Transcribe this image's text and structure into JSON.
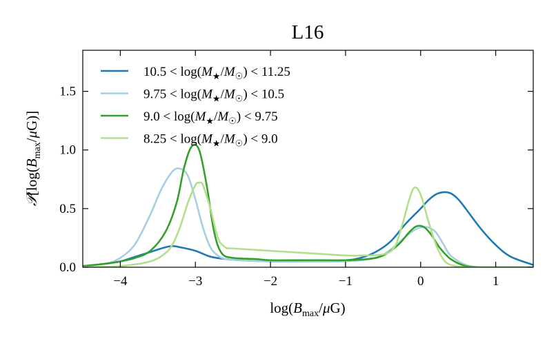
{
  "chart_data": {
    "type": "line",
    "title": "L16",
    "xlabel": "log(B_max/μG)",
    "ylabel": "𝒫[log(B_max/μG)]",
    "xlim": [
      -4.5,
      1.5
    ],
    "ylim": [
      0,
      1.85
    ],
    "xticks": [
      -4,
      -3,
      -2,
      -1,
      0,
      1
    ],
    "xtick_labels": [
      "−4",
      "−3",
      "−2",
      "−1",
      "0",
      "1"
    ],
    "yticks": [
      0.0,
      0.5,
      1.0,
      1.5
    ],
    "ytick_labels": [
      "0.0",
      "0.5",
      "1.0",
      "1.5"
    ],
    "legend_position": "upper-left",
    "series": [
      {
        "name": "10.5 < log(M★/M☉) < 11.25",
        "legend_prefix": "10.5 < log(",
        "legend_suffix": ") < 11.25",
        "color": "#1f78b4",
        "x": [
          -4.5,
          -4.2,
          -4.0,
          -3.8,
          -3.6,
          -3.4,
          -3.3,
          -3.2,
          -3.0,
          -2.8,
          -2.6,
          -2.4,
          -2.0,
          -1.5,
          -1.0,
          -0.8,
          -0.6,
          -0.4,
          -0.2,
          0.0,
          0.1,
          0.2,
          0.3,
          0.4,
          0.5,
          0.6,
          0.8,
          1.0,
          1.2,
          1.5
        ],
        "y": [
          0.01,
          0.03,
          0.05,
          0.09,
          0.13,
          0.17,
          0.18,
          0.17,
          0.14,
          0.09,
          0.07,
          0.06,
          0.05,
          0.05,
          0.06,
          0.08,
          0.13,
          0.22,
          0.37,
          0.5,
          0.57,
          0.62,
          0.64,
          0.63,
          0.58,
          0.5,
          0.33,
          0.19,
          0.09,
          0.02
        ]
      },
      {
        "name": "9.75 < log(M★/M☉) < 10.5",
        "legend_prefix": "9.75 < log(",
        "legend_suffix": ") < 10.5",
        "color": "#a6cee3",
        "x": [
          -4.5,
          -4.2,
          -4.0,
          -3.8,
          -3.6,
          -3.45,
          -3.3,
          -3.2,
          -3.1,
          -3.0,
          -2.9,
          -2.8,
          -2.7,
          -2.6,
          -2.4,
          -2.0,
          -1.5,
          -1.0,
          -0.6,
          -0.4,
          -0.2,
          -0.1,
          0.0,
          0.1,
          0.2,
          0.3,
          0.4,
          0.6,
          0.8,
          1.0,
          1.5
        ],
        "y": [
          0.01,
          0.03,
          0.08,
          0.2,
          0.45,
          0.67,
          0.82,
          0.84,
          0.78,
          0.58,
          0.34,
          0.17,
          0.1,
          0.07,
          0.06,
          0.05,
          0.05,
          0.05,
          0.08,
          0.15,
          0.26,
          0.31,
          0.34,
          0.34,
          0.3,
          0.2,
          0.1,
          0.02,
          0.0,
          0.0,
          0.0
        ]
      },
      {
        "name": "9.0 < log(M★/M☉) < 9.75",
        "legend_prefix": "9.0 < log(",
        "legend_suffix": ") < 9.75",
        "color": "#33a02c",
        "x": [
          -4.5,
          -4.2,
          -4.0,
          -3.8,
          -3.6,
          -3.4,
          -3.25,
          -3.15,
          -3.05,
          -2.95,
          -2.85,
          -2.75,
          -2.65,
          -2.5,
          -2.2,
          -2.0,
          -1.5,
          -1.0,
          -0.7,
          -0.5,
          -0.3,
          -0.15,
          -0.05,
          0.05,
          0.15,
          0.25,
          0.4,
          0.6,
          0.8,
          1.0,
          1.5
        ],
        "y": [
          0.01,
          0.03,
          0.05,
          0.08,
          0.14,
          0.3,
          0.55,
          0.85,
          1.03,
          1.0,
          0.7,
          0.3,
          0.12,
          0.08,
          0.07,
          0.06,
          0.06,
          0.06,
          0.07,
          0.1,
          0.19,
          0.3,
          0.35,
          0.34,
          0.27,
          0.17,
          0.07,
          0.01,
          0.0,
          0.0,
          0.0
        ]
      },
      {
        "name": "8.25 < log(M★/M☉) < 9.0",
        "legend_prefix": "8.25 < log(",
        "legend_suffix": ") < 9.0",
        "color": "#b2df8a",
        "x": [
          -4.5,
          -4.0,
          -3.6,
          -3.4,
          -3.3,
          -3.2,
          -3.1,
          -3.0,
          -2.95,
          -2.9,
          -2.8,
          -2.7,
          -2.6,
          -2.5,
          -2.0,
          -1.5,
          -1.0,
          -0.8,
          -0.5,
          -0.35,
          -0.25,
          -0.15,
          -0.08,
          0.0,
          0.1,
          0.2,
          0.3,
          0.4,
          0.6,
          0.8,
          1.0,
          1.5
        ],
        "y": [
          0.0,
          0.01,
          0.05,
          0.12,
          0.2,
          0.35,
          0.55,
          0.7,
          0.72,
          0.7,
          0.5,
          0.25,
          0.17,
          0.16,
          0.14,
          0.12,
          0.1,
          0.1,
          0.11,
          0.17,
          0.35,
          0.58,
          0.68,
          0.62,
          0.4,
          0.2,
          0.07,
          0.02,
          0.0,
          0.0,
          0.0,
          0.0
        ]
      }
    ]
  }
}
